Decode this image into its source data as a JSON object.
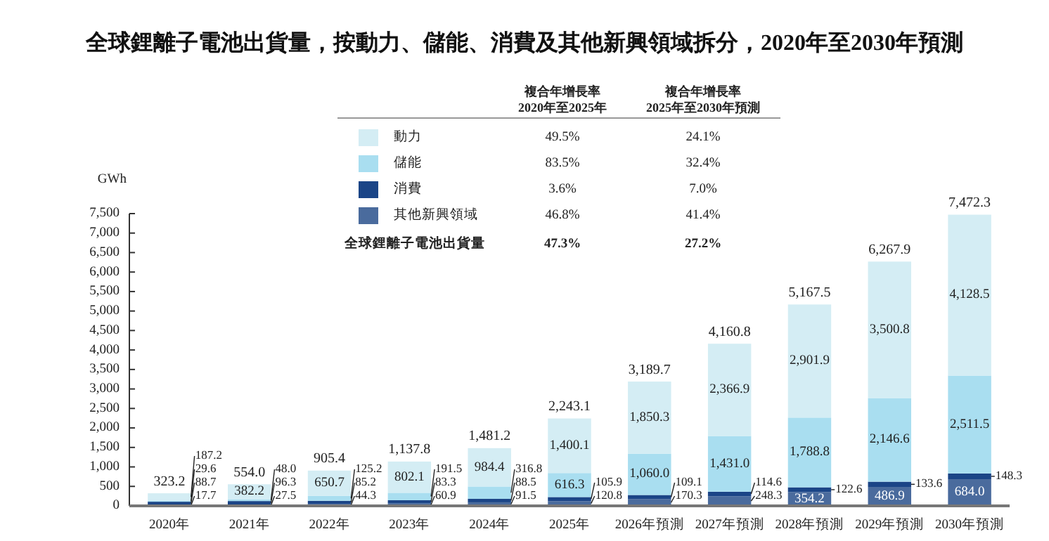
{
  "chart_data": {
    "type": "bar",
    "title": "全球鋰離子電池出貨量，按動力、儲能、消費及其他新興領域拆分，2020年至2030年預測",
    "ylabel": "GWh",
    "categories": [
      "2020年",
      "2021年",
      "2022年",
      "2023年",
      "2024年",
      "2025年",
      "2026年預測",
      "2027年預測",
      "2028年預測",
      "2029年預測",
      "2030年預測"
    ],
    "stacked": true,
    "legend": "top",
    "ylim": [
      0,
      7500
    ],
    "yticks": [
      0,
      500,
      {
        "value": 1000,
        "label": "1,000"
      },
      {
        "value": 1500,
        "label": "1,500"
      },
      {
        "value": 2000,
        "label": "2,000"
      },
      {
        "value": 2500,
        "label": "2,500"
      },
      {
        "value": 3000,
        "label": "3,000"
      },
      {
        "value": 3500,
        "label": "3,500"
      },
      {
        "value": 4000,
        "label": "4,000"
      },
      {
        "value": 4500,
        "label": "4,500"
      },
      {
        "value": 5000,
        "label": "5,000"
      },
      {
        "value": 5500,
        "label": "5,500"
      },
      {
        "value": 6000,
        "label": "6,000"
      },
      {
        "value": 6500,
        "label": "6,500"
      },
      {
        "value": 7000,
        "label": "7,000"
      },
      {
        "value": 7500,
        "label": "7,500"
      }
    ],
    "series": [
      {
        "name": "其他新興領域",
        "color": "#4a6b9d",
        "values": [
          17.7,
          27.5,
          44.3,
          60.9,
          91.5,
          120.8,
          170.3,
          248.3,
          354.2,
          486.9,
          684.0
        ],
        "value_labels": [
          "17.7",
          "27.5",
          "44.3",
          "60.9",
          "91.5",
          "120.8",
          "170.3",
          "248.3",
          "354.2",
          "486.9",
          "684.0"
        ]
      },
      {
        "name": "消費",
        "color": "#1b4587",
        "values": [
          88.7,
          96.3,
          85.2,
          83.3,
          88.5,
          105.9,
          109.1,
          114.6,
          122.6,
          133.6,
          148.3
        ],
        "value_labels": [
          "88.7",
          "96.3",
          "85.2",
          "83.3",
          "88.5",
          "105.9",
          "109.1",
          "114.6",
          "122.6",
          "133.6",
          "148.3"
        ]
      },
      {
        "name": "儲能",
        "color": "#a9def0",
        "values": [
          29.6,
          48.0,
          125.2,
          191.5,
          316.8,
          616.3,
          1060.0,
          1431.0,
          1788.8,
          2146.6,
          2511.5
        ],
        "value_labels": [
          "29.6",
          "48.0",
          "125.2",
          "191.5",
          "316.8",
          "616.3",
          "1,060.0",
          "1,431.0",
          "1,788.8",
          "2,146.6",
          "2,511.5"
        ]
      },
      {
        "name": "動力",
        "color": "#d4edf4",
        "values": [
          187.2,
          382.2,
          650.7,
          802.1,
          984.4,
          1400.1,
          1850.3,
          2366.9,
          2901.9,
          3500.8,
          4128.5
        ],
        "value_labels": [
          "187.2",
          "382.2",
          "650.7",
          "802.1",
          "984.4",
          "1,400.1",
          "1,850.3",
          "2,366.9",
          "2,901.9",
          "3,500.8",
          "4,128.5"
        ]
      }
    ],
    "totals": [
      "323.2",
      "554.0",
      "905.4",
      "1,137.8",
      "1,481.2",
      "2,243.1",
      "3,189.7",
      "4,160.8",
      "5,167.5",
      "6,267.9",
      "7,472.3"
    ],
    "annotations": [
      "複合年增長率\n2020年至2025年",
      "複合年增長率\n2025年至2030年預測",
      "49.5%",
      "24.1%",
      "83.5%",
      "32.4%",
      "3.6%",
      "7.0%",
      "46.8%",
      "41.4%",
      "全球鋰離子電池出貨量",
      "47.3%",
      "27.2%"
    ]
  }
}
